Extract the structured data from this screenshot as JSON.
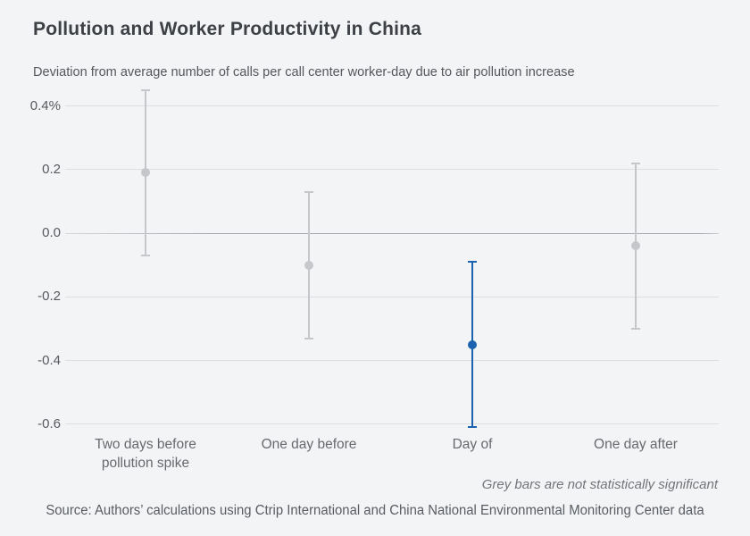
{
  "chart_data": {
    "type": "scatter",
    "subtype": "point-with-error-bars",
    "title": "Pollution and Worker Productivity in China",
    "subtitle": "Deviation from average number of calls per call center worker-day due to air pollution increase",
    "categories": [
      "Two days before\npollution spike",
      "One day before",
      "Day of",
      "One day after"
    ],
    "values": [
      0.19,
      -0.1,
      -0.35,
      -0.04
    ],
    "ci_high": [
      0.45,
      0.13,
      -0.09,
      0.22
    ],
    "ci_low": [
      -0.07,
      -0.33,
      -0.61,
      -0.3
    ],
    "significant": [
      false,
      false,
      true,
      false
    ],
    "yticks": [
      0.4,
      0.2,
      0.0,
      -0.2,
      -0.4,
      -0.6
    ],
    "ytick_labels": [
      "0.4%",
      "0.2",
      "0.0",
      "-0.2",
      "-0.4",
      "-0.6"
    ],
    "ylim": [
      -0.66,
      0.47
    ],
    "grid": true,
    "legend": "none",
    "note": "Grey bars are not statistically significant",
    "source": "Source: Authors’ calculations using Ctrip International and China National Environmental Monitoring Center data",
    "colors": {
      "significant": "#1b63ae",
      "insignificant": "#c5c7cb",
      "background": "#f3f4f6",
      "gridline": "#dcdee1",
      "zeroline": "#a4a8b0",
      "title_text": "#3d4045"
    }
  }
}
